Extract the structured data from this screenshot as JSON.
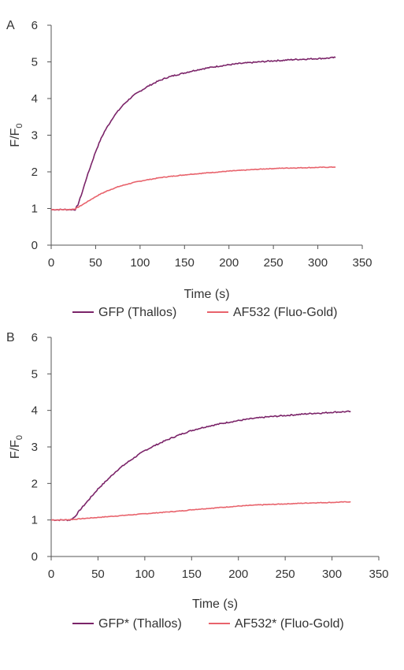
{
  "chart_data": [
    {
      "panel_label": "A",
      "type": "line",
      "xlabel": "Time (s)",
      "ylabel": "F/F",
      "ylabel_subscript": "0",
      "xlim": [
        0,
        350
      ],
      "ylim": [
        0,
        6
      ],
      "xticks": [
        "0",
        "50",
        "100",
        "150",
        "200",
        "250",
        "300",
        "350"
      ],
      "yticks": [
        "0",
        "1",
        "2",
        "3",
        "4",
        "5",
        "6"
      ],
      "grid": false,
      "legend_position": "bottom",
      "series": [
        {
          "name": "GFP (Thallos)",
          "color": "#7b2469",
          "x": [
            0,
            10,
            20,
            27,
            30,
            35,
            40,
            45,
            50,
            55,
            60,
            65,
            70,
            75,
            80,
            85,
            90,
            95,
            100,
            110,
            120,
            130,
            140,
            150,
            160,
            170,
            180,
            190,
            200,
            210,
            220,
            230,
            240,
            250,
            260,
            270,
            280,
            290,
            300,
            310,
            320
          ],
          "y": [
            0.97,
            0.97,
            0.97,
            0.97,
            1.1,
            1.45,
            1.85,
            2.2,
            2.55,
            2.85,
            3.1,
            3.3,
            3.5,
            3.65,
            3.8,
            3.92,
            4.03,
            4.12,
            4.2,
            4.35,
            4.47,
            4.57,
            4.64,
            4.7,
            4.76,
            4.81,
            4.85,
            4.89,
            4.92,
            4.95,
            4.97,
            4.99,
            5.01,
            5.03,
            5.04,
            5.06,
            5.07,
            5.08,
            5.09,
            5.1,
            5.12
          ]
        },
        {
          "name": "AF532 (Fluo-Gold)",
          "color": "#e8636c",
          "x": [
            0,
            10,
            20,
            27,
            35,
            45,
            55,
            65,
            75,
            85,
            95,
            105,
            115,
            125,
            140,
            155,
            170,
            185,
            200,
            220,
            240,
            260,
            280,
            300,
            320
          ],
          "y": [
            0.97,
            0.97,
            0.97,
            0.99,
            1.1,
            1.25,
            1.39,
            1.5,
            1.59,
            1.66,
            1.72,
            1.77,
            1.81,
            1.85,
            1.89,
            1.93,
            1.96,
            1.99,
            2.02,
            2.05,
            2.08,
            2.1,
            2.11,
            2.12,
            2.13
          ]
        }
      ]
    },
    {
      "panel_label": "B",
      "type": "line",
      "xlabel": "Time (s)",
      "ylabel": "F/F",
      "ylabel_subscript": "0",
      "xlim": [
        0,
        350
      ],
      "ylim": [
        0,
        6
      ],
      "xticks": [
        "0",
        "50",
        "100",
        "150",
        "200",
        "250",
        "300",
        "350"
      ],
      "yticks": [
        "0",
        "1",
        "2",
        "3",
        "4",
        "5",
        "6"
      ],
      "grid": false,
      "legend_position": "bottom",
      "series": [
        {
          "name": "GFP* (Thallos)",
          "color": "#7b2469",
          "x": [
            0,
            10,
            20,
            25,
            30,
            40,
            50,
            60,
            70,
            80,
            90,
            100,
            110,
            120,
            130,
            140,
            150,
            160,
            170,
            180,
            190,
            200,
            210,
            220,
            230,
            240,
            250,
            260,
            270,
            280,
            290,
            300,
            310,
            320
          ],
          "y": [
            1.0,
            1.0,
            1.0,
            1.08,
            1.25,
            1.55,
            1.85,
            2.1,
            2.35,
            2.55,
            2.73,
            2.9,
            3.03,
            3.15,
            3.26,
            3.36,
            3.45,
            3.52,
            3.58,
            3.63,
            3.68,
            3.72,
            3.76,
            3.79,
            3.82,
            3.84,
            3.86,
            3.88,
            3.9,
            3.92,
            3.93,
            3.95,
            3.96,
            3.97
          ]
        },
        {
          "name": "AF532* (Fluo-Gold)",
          "color": "#e8636c",
          "x": [
            0,
            10,
            20,
            30,
            40,
            50,
            60,
            70,
            80,
            90,
            100,
            110,
            120,
            130,
            140,
            150,
            160,
            170,
            180,
            190,
            200,
            220,
            240,
            260,
            280,
            300,
            320
          ],
          "y": [
            1.0,
            1.0,
            1.01,
            1.03,
            1.05,
            1.07,
            1.09,
            1.11,
            1.13,
            1.15,
            1.17,
            1.19,
            1.21,
            1.23,
            1.25,
            1.28,
            1.3,
            1.32,
            1.34,
            1.36,
            1.38,
            1.41,
            1.43,
            1.45,
            1.47,
            1.48,
            1.5
          ]
        }
      ]
    }
  ]
}
